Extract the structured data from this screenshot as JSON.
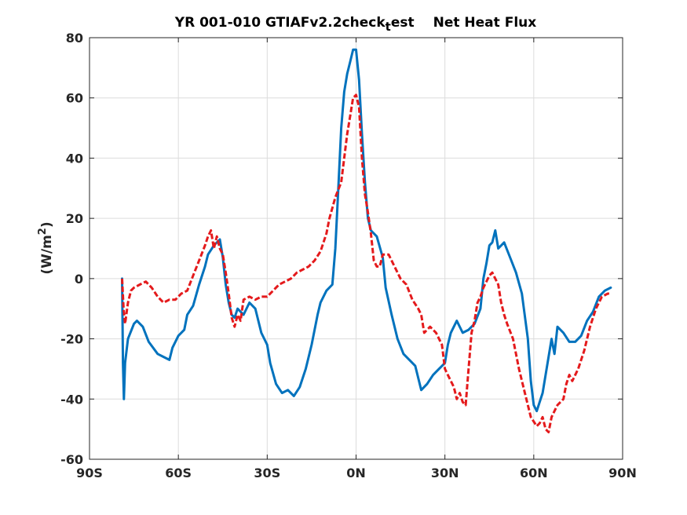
{
  "chart_data": {
    "type": "line",
    "title": {
      "part1": "YR 001-010 GTIAFv2.2check",
      "subscript": "t",
      "part2": "est",
      "part3": "Net Heat Flux"
    },
    "xlabel": "",
    "ylabel": {
      "main": "(W/m",
      "sup": "2",
      "close": ")"
    },
    "xlim": [
      -90,
      90
    ],
    "ylim": [
      -60,
      80
    ],
    "xticks": [
      -90,
      -60,
      -30,
      0,
      30,
      60,
      90
    ],
    "xtick_labels": [
      "90S",
      "60S",
      "30S",
      "0N",
      "30N",
      "60N",
      "90N"
    ],
    "yticks": [
      -60,
      -40,
      -20,
      0,
      20,
      40,
      60,
      80
    ],
    "ytick_labels": [
      "-60",
      "-40",
      "-20",
      "0",
      "20",
      "40",
      "60",
      "80"
    ],
    "grid": true,
    "series": [
      {
        "color": "#0072BD",
        "dash": "solid",
        "points": [
          [
            -79,
            0
          ],
          [
            -78.7,
            -28
          ],
          [
            -78.4,
            -40
          ],
          [
            -78,
            -28
          ],
          [
            -77,
            -20
          ],
          [
            -75,
            -15
          ],
          [
            -74,
            -14
          ],
          [
            -72,
            -16
          ],
          [
            -70,
            -21
          ],
          [
            -67,
            -25
          ],
          [
            -65,
            -26
          ],
          [
            -63,
            -27
          ],
          [
            -62,
            -23
          ],
          [
            -60,
            -19
          ],
          [
            -58,
            -17
          ],
          [
            -57,
            -12
          ],
          [
            -55,
            -9
          ],
          [
            -53,
            -2
          ],
          [
            -51,
            4
          ],
          [
            -50,
            8
          ],
          [
            -48,
            11
          ],
          [
            -46,
            13
          ],
          [
            -45,
            7
          ],
          [
            -44,
            -2
          ],
          [
            -43,
            -8
          ],
          [
            -42,
            -12
          ],
          [
            -41,
            -13
          ],
          [
            -40,
            -10
          ],
          [
            -38,
            -12
          ],
          [
            -36,
            -8
          ],
          [
            -34,
            -10
          ],
          [
            -32,
            -18
          ],
          [
            -30,
            -22
          ],
          [
            -29,
            -28
          ],
          [
            -27,
            -35
          ],
          [
            -25,
            -38
          ],
          [
            -23,
            -37
          ],
          [
            -21,
            -39
          ],
          [
            -19,
            -36
          ],
          [
            -17,
            -30
          ],
          [
            -15,
            -22
          ],
          [
            -13,
            -12
          ],
          [
            -12,
            -8
          ],
          [
            -10,
            -4
          ],
          [
            -8,
            -2
          ],
          [
            -7,
            10
          ],
          [
            -6,
            30
          ],
          [
            -5,
            50
          ],
          [
            -4,
            62
          ],
          [
            -3,
            68
          ],
          [
            -2,
            72
          ],
          [
            -1,
            76
          ],
          [
            0,
            76
          ],
          [
            1,
            66
          ],
          [
            2,
            48
          ],
          [
            3,
            32
          ],
          [
            4,
            20
          ],
          [
            5,
            16
          ],
          [
            7,
            14
          ],
          [
            9,
            7
          ],
          [
            10,
            -3
          ],
          [
            12,
            -12
          ],
          [
            14,
            -20
          ],
          [
            16,
            -25
          ],
          [
            18,
            -27
          ],
          [
            20,
            -29
          ],
          [
            22,
            -37
          ],
          [
            24,
            -35
          ],
          [
            26,
            -32
          ],
          [
            28,
            -30
          ],
          [
            30,
            -28
          ],
          [
            31,
            -22
          ],
          [
            32,
            -18
          ],
          [
            34,
            -14
          ],
          [
            36,
            -18
          ],
          [
            38,
            -17
          ],
          [
            40,
            -15
          ],
          [
            42,
            -10
          ],
          [
            43,
            0
          ],
          [
            44,
            5
          ],
          [
            45,
            11
          ],
          [
            46,
            12
          ],
          [
            47,
            16
          ],
          [
            48,
            10
          ],
          [
            50,
            12
          ],
          [
            52,
            7
          ],
          [
            54,
            2
          ],
          [
            56,
            -5
          ],
          [
            58,
            -20
          ],
          [
            59,
            -34
          ],
          [
            60,
            -42
          ],
          [
            61,
            -44
          ],
          [
            63,
            -38
          ],
          [
            64,
            -32
          ],
          [
            65,
            -26
          ],
          [
            66,
            -20
          ],
          [
            67,
            -25
          ],
          [
            68,
            -16
          ],
          [
            70,
            -18
          ],
          [
            72,
            -21
          ],
          [
            74,
            -21
          ],
          [
            76,
            -19
          ],
          [
            78,
            -14
          ],
          [
            80,
            -11
          ],
          [
            82,
            -6
          ],
          [
            84,
            -4
          ],
          [
            86,
            -3
          ]
        ]
      },
      {
        "color": "#E41A1C",
        "dash": "dashed",
        "points": [
          [
            -79,
            0
          ],
          [
            -78.5,
            -10
          ],
          [
            -78,
            -15
          ],
          [
            -77,
            -8
          ],
          [
            -76,
            -4
          ],
          [
            -75,
            -3
          ],
          [
            -73,
            -2
          ],
          [
            -71,
            -1
          ],
          [
            -69,
            -3
          ],
          [
            -67,
            -6
          ],
          [
            -65,
            -8
          ],
          [
            -63,
            -7
          ],
          [
            -61,
            -7
          ],
          [
            -59,
            -5
          ],
          [
            -57,
            -4
          ],
          [
            -55,
            1
          ],
          [
            -53,
            6
          ],
          [
            -51,
            11
          ],
          [
            -50,
            14
          ],
          [
            -49,
            16
          ],
          [
            -48,
            10
          ],
          [
            -47,
            14
          ],
          [
            -46,
            10
          ],
          [
            -45,
            8
          ],
          [
            -44,
            2
          ],
          [
            -43,
            -5
          ],
          [
            -42,
            -13
          ],
          [
            -41,
            -16
          ],
          [
            -40,
            -12
          ],
          [
            -39,
            -14
          ],
          [
            -38,
            -7
          ],
          [
            -36,
            -6
          ],
          [
            -34,
            -7
          ],
          [
            -32,
            -6
          ],
          [
            -30,
            -6
          ],
          [
            -28,
            -4
          ],
          [
            -26,
            -2
          ],
          [
            -24,
            -1
          ],
          [
            -22,
            0
          ],
          [
            -20,
            2
          ],
          [
            -18,
            3
          ],
          [
            -16,
            4
          ],
          [
            -14,
            6
          ],
          [
            -12,
            9
          ],
          [
            -10,
            15
          ],
          [
            -9,
            20
          ],
          [
            -7,
            27
          ],
          [
            -5,
            32
          ],
          [
            -4,
            40
          ],
          [
            -3,
            48
          ],
          [
            -2,
            54
          ],
          [
            -1,
            60
          ],
          [
            0,
            61
          ],
          [
            1,
            57
          ],
          [
            2,
            40
          ],
          [
            3,
            28
          ],
          [
            4,
            22
          ],
          [
            5,
            15
          ],
          [
            6,
            6
          ],
          [
            7,
            4
          ],
          [
            8,
            4
          ],
          [
            9,
            8
          ],
          [
            11,
            8
          ],
          [
            13,
            4
          ],
          [
            15,
            0
          ],
          [
            17,
            -2
          ],
          [
            19,
            -7
          ],
          [
            21,
            -10
          ],
          [
            22,
            -12
          ],
          [
            23,
            -18
          ],
          [
            25,
            -16
          ],
          [
            27,
            -18
          ],
          [
            29,
            -22
          ],
          [
            30,
            -30
          ],
          [
            31,
            -32
          ],
          [
            33,
            -36
          ],
          [
            34,
            -40
          ],
          [
            35,
            -38
          ],
          [
            36,
            -41
          ],
          [
            37,
            -42
          ],
          [
            38,
            -30
          ],
          [
            39,
            -18
          ],
          [
            40,
            -14
          ],
          [
            41,
            -8
          ],
          [
            42,
            -6
          ],
          [
            43,
            -3
          ],
          [
            44,
            -1
          ],
          [
            45,
            1
          ],
          [
            46,
            2
          ],
          [
            47,
            0
          ],
          [
            48,
            -2
          ],
          [
            49,
            -8
          ],
          [
            50,
            -12
          ],
          [
            51,
            -15
          ],
          [
            53,
            -20
          ],
          [
            55,
            -30
          ],
          [
            57,
            -38
          ],
          [
            59,
            -46
          ],
          [
            61,
            -49
          ],
          [
            62,
            -48
          ],
          [
            63,
            -46
          ],
          [
            64,
            -50
          ],
          [
            65,
            -51
          ],
          [
            66,
            -46
          ],
          [
            67,
            -44
          ],
          [
            68,
            -42
          ],
          [
            70,
            -40
          ],
          [
            71,
            -35
          ],
          [
            72,
            -32
          ],
          [
            73,
            -34
          ],
          [
            75,
            -30
          ],
          [
            77,
            -24
          ],
          [
            79,
            -16
          ],
          [
            81,
            -10
          ],
          [
            83,
            -6
          ],
          [
            85,
            -5
          ],
          [
            86,
            -5
          ]
        ]
      }
    ]
  }
}
